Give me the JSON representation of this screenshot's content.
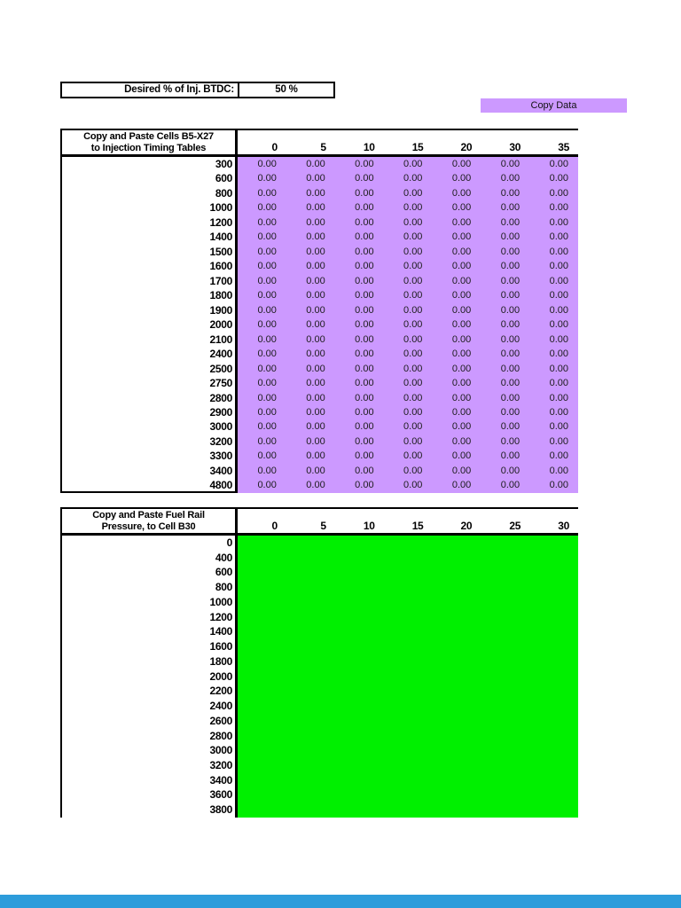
{
  "page": {
    "background": "#ffffff",
    "footer_bar_color": "#2D9CDB"
  },
  "desired_input": {
    "label": "Desired % of Inj. BTDC:",
    "value": "50 %"
  },
  "copy_button": {
    "label": "Copy Data",
    "background": "#CC99FF"
  },
  "timing_table": {
    "title_line1": "Copy and Paste Cells B5-X27",
    "title_line2": "to Injection Timing Tables",
    "column_headers": [
      "0",
      "5",
      "10",
      "15",
      "20",
      "30",
      "35"
    ],
    "row_labels": [
      "300",
      "600",
      "800",
      "1000",
      "1200",
      "1400",
      "1500",
      "1600",
      "1700",
      "1800",
      "1900",
      "2000",
      "2100",
      "2400",
      "2500",
      "2750",
      "2800",
      "2900",
      "3000",
      "3200",
      "3300",
      "3400",
      "4800"
    ],
    "cell_value": "0.00",
    "cell_background": "#CC99FF"
  },
  "pressure_table": {
    "title_line1": "Copy and Paste Fuel Rail",
    "title_line2": "Pressure, to Cell B30",
    "column_headers": [
      "0",
      "5",
      "10",
      "15",
      "20",
      "25",
      "30"
    ],
    "row_labels": [
      "0",
      "400",
      "600",
      "800",
      "1000",
      "1200",
      "1400",
      "1600",
      "1800",
      "2000",
      "2200",
      "2400",
      "2600",
      "2800",
      "3000",
      "3200",
      "3400",
      "3600",
      "3800"
    ],
    "cell_value": "",
    "cell_background": "#00F000"
  }
}
